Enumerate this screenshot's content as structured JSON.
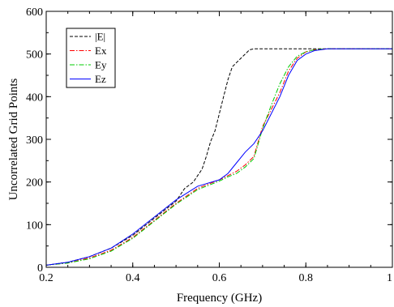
{
  "chart_data": {
    "type": "line",
    "title": "",
    "xlabel": "Frequency (GHz)",
    "ylabel": "Uncorrelated Grid Points",
    "xlim": [
      0.2,
      1.0
    ],
    "ylim": [
      0,
      600
    ],
    "xticks": [
      0.2,
      0.4,
      0.6,
      0.8,
      1
    ],
    "xtick_labels": [
      "0.2",
      "0.4",
      "0.6",
      "0.8",
      "1"
    ],
    "yticks": [
      0,
      100,
      200,
      300,
      400,
      500,
      600
    ],
    "ytick_labels": [
      "0",
      "100",
      "200",
      "300",
      "400",
      "500",
      "600"
    ],
    "grid": false,
    "legend_position": "top-left",
    "series": [
      {
        "name": "|E|",
        "color": "#000000",
        "dash": "dashed",
        "x": [
          0.2,
          0.25,
          0.3,
          0.35,
          0.4,
          0.45,
          0.5,
          0.52,
          0.54,
          0.55,
          0.56,
          0.57,
          0.58,
          0.59,
          0.6,
          0.61,
          0.62,
          0.63,
          0.64,
          0.65,
          0.66,
          0.67,
          0.68,
          0.7,
          0.75,
          0.8,
          0.85,
          0.9,
          0.95,
          1.0
        ],
        "y": [
          5,
          12,
          25,
          45,
          75,
          115,
          155,
          185,
          200,
          215,
          230,
          260,
          295,
          320,
          360,
          400,
          440,
          470,
          480,
          490,
          500,
          510,
          512,
          512,
          512,
          512,
          512,
          512,
          512,
          512
        ]
      },
      {
        "name": "Ex",
        "color": "#ff0000",
        "dash": "dashdot",
        "x": [
          0.2,
          0.25,
          0.3,
          0.35,
          0.4,
          0.45,
          0.5,
          0.55,
          0.6,
          0.62,
          0.64,
          0.66,
          0.68,
          0.7,
          0.72,
          0.74,
          0.76,
          0.78,
          0.8,
          0.82,
          0.85,
          0.9,
          0.95,
          1.0
        ],
        "y": [
          5,
          10,
          22,
          40,
          70,
          110,
          150,
          185,
          205,
          215,
          225,
          240,
          260,
          330,
          370,
          410,
          460,
          490,
          505,
          510,
          512,
          512,
          512,
          512
        ]
      },
      {
        "name": "Ey",
        "color": "#00cc00",
        "dash": "dashdot",
        "x": [
          0.2,
          0.25,
          0.3,
          0.35,
          0.4,
          0.45,
          0.5,
          0.55,
          0.6,
          0.62,
          0.64,
          0.66,
          0.68,
          0.7,
          0.72,
          0.74,
          0.76,
          0.78,
          0.8,
          0.82,
          0.85,
          0.9,
          0.95,
          1.0
        ],
        "y": [
          5,
          10,
          20,
          38,
          68,
          108,
          148,
          182,
          202,
          212,
          220,
          235,
          255,
          325,
          380,
          430,
          470,
          495,
          505,
          510,
          512,
          512,
          512,
          512
        ]
      },
      {
        "name": "Ez",
        "color": "#0000ff",
        "dash": "solid",
        "x": [
          0.2,
          0.25,
          0.3,
          0.35,
          0.4,
          0.45,
          0.5,
          0.55,
          0.6,
          0.62,
          0.64,
          0.66,
          0.68,
          0.7,
          0.72,
          0.74,
          0.76,
          0.78,
          0.8,
          0.82,
          0.85,
          0.9,
          0.95,
          1.0
        ],
        "y": [
          5,
          12,
          25,
          45,
          78,
          118,
          158,
          190,
          205,
          220,
          245,
          270,
          290,
          320,
          360,
          400,
          450,
          485,
          500,
          508,
          512,
          512,
          512,
          512
        ]
      }
    ]
  }
}
